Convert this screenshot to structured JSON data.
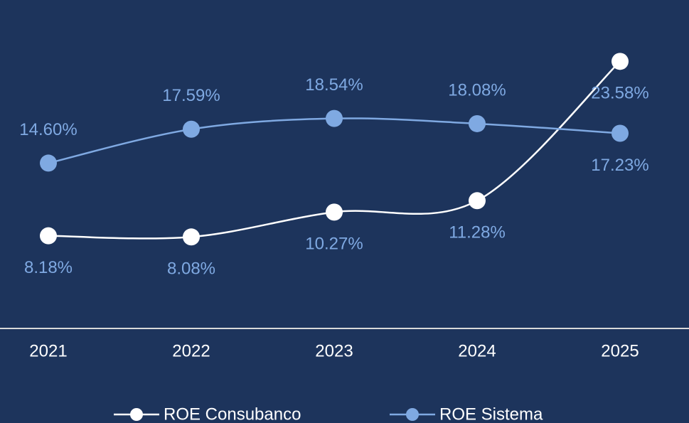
{
  "chart_data": {
    "type": "line",
    "categories": [
      "2021",
      "2022",
      "2023",
      "2024",
      "2025"
    ],
    "series": [
      {
        "name": "ROE Consubanco",
        "color": "#ffffff",
        "values": [
          8.18,
          8.08,
          10.27,
          11.28,
          23.58
        ],
        "value_labels": [
          "8.18%",
          "8.08%",
          "10.27%",
          "11.28%",
          "23.58%"
        ]
      },
      {
        "name": "ROE Sistema",
        "color": "#7fa9e2",
        "values": [
          14.6,
          17.59,
          18.54,
          18.08,
          17.23
        ],
        "value_labels": [
          "14.60%",
          "17.59%",
          "18.54%",
          "18.08%",
          "17.23%"
        ]
      }
    ],
    "ylim": [
      0,
      29
    ],
    "label_color": "#7fa9e2"
  }
}
